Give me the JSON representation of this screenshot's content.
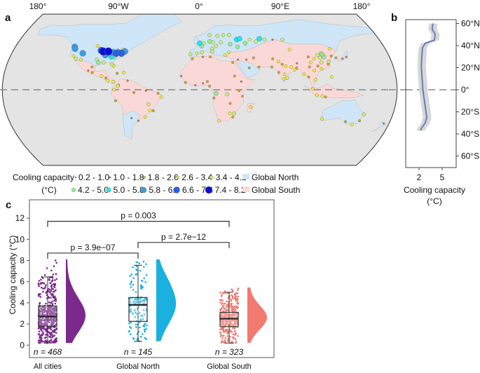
{
  "panels": {
    "a": "a",
    "b": "b",
    "c": "c"
  },
  "colors": {
    "global_north": "#cfe6f8",
    "global_south": "#fbd8d8",
    "ocean": "#e4e4e4",
    "all_cities": "#7b2a8c",
    "north": "#1ab0e0",
    "south": "#f27a70"
  },
  "chart_data": [
    {
      "type": "map-scatter",
      "panel": "a",
      "lon_ticks": [
        "180°",
        "90°W",
        "0°",
        "90°E",
        "180°"
      ],
      "legend": {
        "title_line1": "Cooling capacity",
        "title_line2": "(°C)",
        "classes": [
          {
            "label": "0.2 - 1.0",
            "color": "#c0392b"
          },
          {
            "label": "1.0 - 1.8",
            "color": "#d9782d"
          },
          {
            "label": "1.8 - 2.6",
            "color": "#d9a521"
          },
          {
            "label": "2.6 - 3.4",
            "color": "#f2ee2a"
          },
          {
            "label": "3.4 - 4.2",
            "color": "#cdee74"
          },
          {
            "label": "4.2 - 5.0",
            "color": "#98e89a"
          },
          {
            "label": "5.0 - 5.8",
            "color": "#1ee6ee"
          },
          {
            "label": "5.8 - 6.6",
            "color": "#3a9be6"
          },
          {
            "label": "6.6 - 7.4",
            "color": "#2c5fe6"
          },
          {
            "label": "7.4 - 8.2",
            "color": "#0a10d8"
          }
        ],
        "regions": [
          "Global North",
          "Global South"
        ]
      },
      "cities_lon_lat_class": [
        [
          -122,
          47,
          7
        ],
        [
          -121,
          45,
          7
        ],
        [
          -112,
          40,
          7
        ],
        [
          -95,
          43,
          8
        ],
        [
          -93,
          42,
          9
        ],
        [
          -88,
          42,
          9
        ],
        [
          -85,
          41,
          7
        ],
        [
          -83,
          42,
          6
        ],
        [
          -80,
          40,
          8
        ],
        [
          -78,
          41,
          7
        ],
        [
          -75,
          40,
          8
        ],
        [
          -72,
          42,
          7
        ],
        [
          -90,
          38,
          7
        ],
        [
          -84,
          36,
          6
        ],
        [
          -86,
          39,
          6
        ],
        [
          -81,
          36,
          5
        ],
        [
          -100,
          48,
          3
        ],
        [
          -79,
          43,
          4
        ],
        [
          -74,
          44,
          4
        ],
        [
          -117,
          34,
          4
        ],
        [
          -112,
          33,
          3
        ],
        [
          -97,
          33,
          4
        ],
        [
          -95,
          30,
          5
        ],
        [
          -90,
          30,
          4
        ],
        [
          -82,
          28,
          4
        ],
        [
          -80,
          26,
          3
        ],
        [
          -120,
          37,
          3
        ],
        [
          -103,
          21,
          1
        ],
        [
          -99,
          19,
          2
        ],
        [
          -100,
          25,
          2
        ],
        [
          -90,
          15,
          3
        ],
        [
          -86,
          13,
          2
        ],
        [
          -84,
          10,
          3
        ],
        [
          -79,
          9,
          3
        ],
        [
          -76,
          18,
          2
        ],
        [
          -70,
          19,
          3
        ],
        [
          -74,
          5,
          2
        ],
        [
          -75,
          4,
          4
        ],
        [
          -66,
          10,
          1
        ],
        [
          -78,
          0,
          3
        ],
        [
          -77,
          -12,
          2
        ],
        [
          -47,
          -16,
          4
        ],
        [
          -43,
          -23,
          2
        ],
        [
          -46,
          -23,
          3
        ],
        [
          -51,
          -30,
          3
        ],
        [
          -58,
          -34,
          1
        ],
        [
          -64,
          -31,
          1
        ],
        [
          -35,
          -8,
          3
        ],
        [
          -38,
          -4,
          2
        ],
        [
          -60,
          -3,
          2
        ],
        [
          -49,
          -1,
          1
        ],
        [
          -3,
          40,
          3
        ],
        [
          -9,
          39,
          4
        ],
        [
          2,
          41,
          4
        ],
        [
          2,
          48,
          5
        ],
        [
          0,
          51,
          6
        ],
        [
          4,
          51,
          4
        ],
        [
          13,
          52,
          4
        ],
        [
          10,
          53,
          5
        ],
        [
          12,
          45,
          4
        ],
        [
          12,
          42,
          4
        ],
        [
          16,
          48,
          4
        ],
        [
          21,
          52,
          4
        ],
        [
          24,
          60,
          4
        ],
        [
          18,
          59,
          4
        ],
        [
          10,
          60,
          4
        ],
        [
          30,
          50,
          5
        ],
        [
          37,
          55,
          6
        ],
        [
          40,
          56,
          6
        ],
        [
          45,
          51,
          5
        ],
        [
          37,
          47,
          5
        ],
        [
          30,
          60,
          4
        ],
        [
          28,
          41,
          3
        ],
        [
          24,
          38,
          3
        ],
        [
          50,
          55,
          3
        ],
        [
          60,
          56,
          6
        ],
        [
          65,
          55,
          4
        ],
        [
          56,
          53,
          4
        ],
        [
          83,
          55,
          4
        ],
        [
          73,
          55,
          1
        ],
        [
          36,
          33,
          1
        ],
        [
          44,
          33,
          1
        ],
        [
          51,
          35,
          2
        ],
        [
          46,
          24,
          2
        ],
        [
          55,
          25,
          2
        ],
        [
          69,
          34,
          2
        ],
        [
          67,
          25,
          2
        ],
        [
          74,
          31,
          3
        ],
        [
          77,
          28,
          2
        ],
        [
          80,
          26,
          3
        ],
        [
          85,
          25,
          3
        ],
        [
          88,
          22,
          3
        ],
        [
          78,
          17,
          3
        ],
        [
          73,
          19,
          2
        ],
        [
          80,
          13,
          4
        ],
        [
          77,
          12,
          3
        ],
        [
          90,
          24,
          2
        ],
        [
          96,
          17,
          3
        ],
        [
          100,
          14,
          2
        ],
        [
          106,
          11,
          3
        ],
        [
          106,
          21,
          3
        ],
        [
          103,
          1,
          3
        ],
        [
          107,
          -6,
          3
        ],
        [
          112,
          -7,
          3
        ],
        [
          115,
          -8,
          2
        ],
        [
          121,
          14,
          3
        ],
        [
          116,
          40,
          4
        ],
        [
          117,
          39,
          5
        ],
        [
          121,
          31,
          4
        ],
        [
          114,
          30,
          4
        ],
        [
          113,
          23,
          3
        ],
        [
          104,
          30,
          3
        ],
        [
          108,
          34,
          3
        ],
        [
          126,
          45,
          3
        ],
        [
          125,
          37,
          2
        ],
        [
          129,
          35,
          2
        ],
        [
          139,
          36,
          1
        ],
        [
          135,
          34,
          1
        ],
        [
          87,
          44,
          3
        ],
        [
          103,
          36,
          2
        ],
        [
          112,
          38,
          4
        ],
        [
          118,
          36,
          5
        ],
        [
          114,
          35,
          4
        ],
        [
          120,
          28,
          2
        ],
        [
          110,
          26,
          2
        ],
        [
          102,
          25,
          2
        ],
        [
          91,
          29,
          1
        ],
        [
          -7,
          34,
          2
        ],
        [
          3,
          36,
          1
        ],
        [
          10,
          36,
          2
        ],
        [
          31,
          30,
          2
        ],
        [
          -17,
          15,
          1
        ],
        [
          -4,
          5,
          1
        ],
        [
          3,
          7,
          1
        ],
        [
          7,
          9,
          2
        ],
        [
          9,
          4,
          2
        ],
        [
          -13,
          8,
          2
        ],
        [
          38,
          9,
          1
        ],
        [
          32,
          15,
          2
        ],
        [
          36,
          -1,
          2
        ],
        [
          39,
          -7,
          1
        ],
        [
          15,
          -4,
          5
        ],
        [
          28,
          -15,
          2
        ],
        [
          32,
          -26,
          4
        ],
        [
          28,
          -26,
          3
        ],
        [
          18,
          -34,
          3
        ],
        [
          31,
          -30,
          2
        ],
        [
          47,
          -19,
          3
        ],
        [
          25,
          -5,
          4
        ],
        [
          13,
          -9,
          2
        ],
        [
          115,
          -32,
          3
        ],
        [
          151,
          -34,
          2
        ],
        [
          145,
          -38,
          3
        ],
        [
          153,
          -27,
          4
        ],
        [
          138,
          -35,
          2
        ],
        [
          175,
          -37,
          1
        ]
      ]
    },
    {
      "type": "line",
      "panel": "b",
      "xlabel_line1": "Cooling capacity",
      "xlabel_line2": "(°C)",
      "x_ticks": [
        "2",
        "5"
      ],
      "y_ticks": [
        "60°N",
        "40°N",
        "20°N",
        "0°",
        "20°S",
        "40°S",
        "60°S"
      ],
      "ylim": [
        -65,
        65
      ],
      "latitude": [
        60,
        55,
        50,
        45,
        42,
        38,
        30,
        20,
        10,
        0,
        -10,
        -20,
        -25,
        -30,
        -35,
        -37
      ],
      "cooling_capacity": [
        3.8,
        3.7,
        4.1,
        4.0,
        2.8,
        2.45,
        2.35,
        2.3,
        2.4,
        2.5,
        2.7,
        2.9,
        3.0,
        2.8,
        2.3,
        2.2
      ]
    },
    {
      "type": "raincloud-boxplot",
      "panel": "c",
      "ylabel": "Cooling capacity (°C)",
      "ylim": [
        -1,
        13
      ],
      "y_ticks": [
        "0",
        "2",
        "4",
        "6",
        "8",
        "10",
        "12"
      ],
      "categories": [
        "All cities",
        "Global North",
        "Global South"
      ],
      "groups": [
        {
          "n_label": "n = 468",
          "n": 468,
          "min": 0.2,
          "q1": 1.8,
          "median": 2.7,
          "q3": 3.7,
          "max": 6.45,
          "data_max": 8.1,
          "peak": 2.8
        },
        {
          "n_label": "n = 145",
          "n": 145,
          "min": 0.35,
          "q1": 2.25,
          "median": 3.8,
          "q3": 4.5,
          "max": 7.55,
          "data_max": 8.1,
          "peak": 3.9
        },
        {
          "n_label": "n = 323",
          "n": 323,
          "min": 0.2,
          "q1": 1.75,
          "median": 2.5,
          "q3": 3.1,
          "max": 5.0,
          "data_max": 5.45,
          "peak": 2.6
        }
      ],
      "comparisons": [
        {
          "label": "p = 0.003",
          "from": 0,
          "to": 2,
          "y": 11.7
        },
        {
          "label": "p = 2.7e−12",
          "from": 1,
          "to": 2,
          "y": 9.7
        },
        {
          "label": "p = 3.9e−07",
          "from": 0,
          "to": 1,
          "y": 8.7
        }
      ]
    }
  ]
}
